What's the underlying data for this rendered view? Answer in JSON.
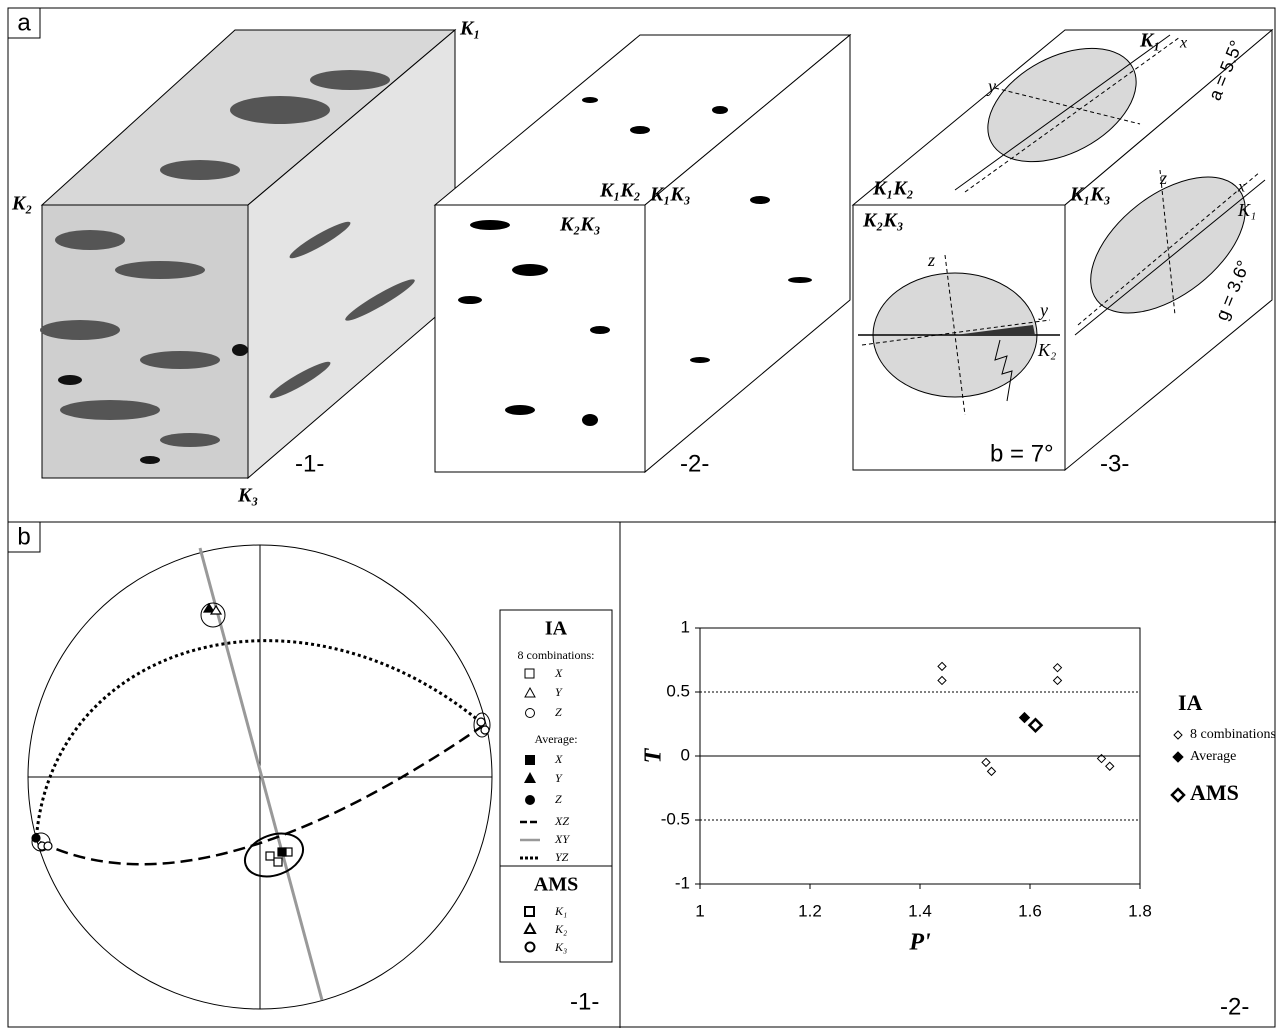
{
  "panel_a": {
    "label": "a",
    "block1": {
      "k1": "K₁",
      "k2": "K₂",
      "k3": "K₃",
      "number": "-1-"
    },
    "block2": {
      "k2k3": "K₂K₃",
      "k1k3": "K₁K₃",
      "k1k2": "K₁K₂",
      "number": "-2-"
    },
    "block3": {
      "k1k2": "K₁K₂",
      "k2k3": "K₂K₃",
      "k1k3": "K₁K₃",
      "top_k1": "K₁",
      "top_x": "x",
      "top_y": "y",
      "angle_a": "a = 5.5°",
      "front_z": "z",
      "front_y": "y",
      "front_k2": "K₂",
      "angle_b": "b = 7°",
      "right_z": "z",
      "right_x": "x",
      "right_k1": "K₁",
      "angle_g": "g = 3.6°",
      "number": "-3-"
    }
  },
  "panel_b": {
    "label": "b",
    "stereonet": {
      "number": "-1-",
      "legend": {
        "ia": "IA",
        "combinations": "8 combinations:",
        "x": "X",
        "y": "Y",
        "z": "Z",
        "average": "Average:",
        "ax": "X",
        "ay": "Y",
        "az": "Z",
        "xz": "XZ",
        "xy": "XY",
        "yz": "YZ",
        "ams": "AMS",
        "k1": "K₁",
        "k2": "K₂",
        "k3": "K₃"
      }
    },
    "chart_number": "-2-"
  },
  "chart_data": {
    "type": "scatter",
    "x_label": "P'",
    "y_label": "T",
    "legend_title": "IA",
    "xlim": [
      1,
      1.8
    ],
    "xticks": [
      1,
      1.2,
      1.4,
      1.6,
      1.8
    ],
    "ylim": [
      -1,
      1
    ],
    "yticks": [
      -1,
      -0.5,
      0,
      0.5,
      1
    ],
    "series": [
      {
        "name": "8 combinations",
        "color": "#000000",
        "x": [
          1.44,
          1.44,
          1.52,
          1.53,
          1.65,
          1.65,
          1.73,
          1.745
        ],
        "values": [
          0.7,
          0.59,
          -0.05,
          -0.12,
          0.69,
          0.59,
          -0.02,
          -0.08
        ]
      },
      {
        "name": "Average",
        "color": "#000000",
        "x": [
          1.59
        ],
        "values": [
          0.3
        ]
      },
      {
        "name": "AMS",
        "color": "#000000",
        "x": [
          1.61
        ],
        "values": [
          0.24
        ]
      }
    ]
  }
}
